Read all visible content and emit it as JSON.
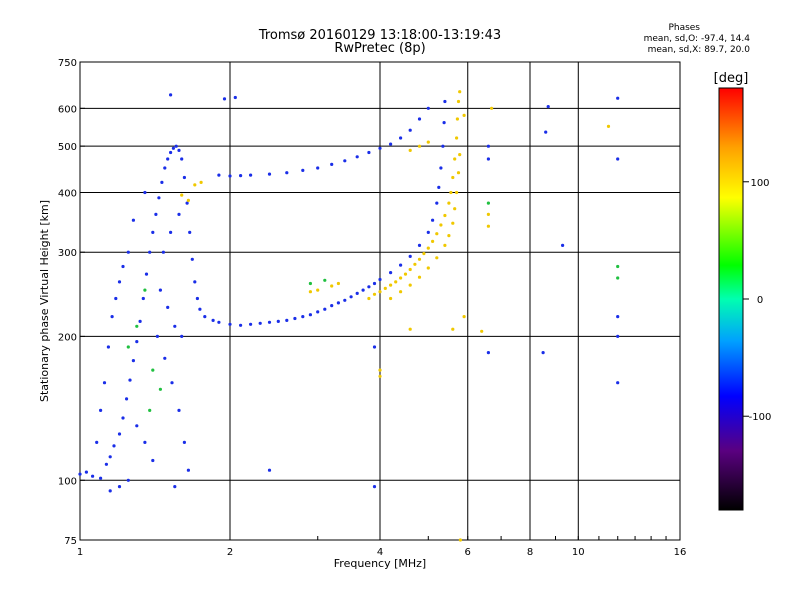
{
  "title": "Tromsø 20160129 13:18:00-13:19:43",
  "subtitle": "RwPretec (8p)",
  "stats": {
    "header": "Phases",
    "o_line": "mean, sd,O: -97.4, 14.4",
    "x_line": "mean, sd,X:  89.7, 20.0"
  },
  "chart_data": {
    "type": "scatter",
    "xlabel": "Frequency [MHz]",
    "ylabel": "Stationary phase Virtual Height [km]",
    "x_scale": "log",
    "y_scale": "log",
    "xlim": [
      1,
      16
    ],
    "ylim": [
      75,
      750
    ],
    "x_ticks": [
      1,
      2,
      4,
      6,
      8,
      10,
      16
    ],
    "y_ticks": [
      75,
      100,
      200,
      300,
      400,
      500,
      600,
      750
    ],
    "grid": true,
    "colorbar": {
      "label": "[deg]",
      "range": [
        -180,
        180
      ],
      "ticks": [
        100,
        0,
        -100
      ]
    },
    "series": [
      {
        "points": [
          [
            1.0,
            103
          ],
          [
            1.03,
            104
          ],
          [
            1.06,
            102
          ],
          [
            1.1,
            101
          ],
          [
            1.13,
            108
          ],
          [
            1.15,
            112
          ],
          [
            1.17,
            118
          ],
          [
            1.2,
            125
          ],
          [
            1.22,
            135
          ],
          [
            1.24,
            148
          ],
          [
            1.26,
            162
          ],
          [
            1.28,
            178
          ],
          [
            1.3,
            195
          ],
          [
            1.32,
            215
          ],
          [
            1.34,
            240
          ],
          [
            1.36,
            270
          ],
          [
            1.38,
            300
          ],
          [
            1.4,
            330
          ],
          [
            1.42,
            360
          ],
          [
            1.44,
            390
          ],
          [
            1.46,
            420
          ],
          [
            1.48,
            450
          ],
          [
            1.5,
            470
          ],
          [
            1.52,
            485
          ],
          [
            1.54,
            495
          ],
          [
            1.56,
            500
          ],
          [
            1.58,
            490
          ],
          [
            1.6,
            470
          ],
          [
            1.62,
            430
          ],
          [
            1.64,
            380
          ],
          [
            1.66,
            330
          ],
          [
            1.68,
            290
          ],
          [
            1.7,
            260
          ],
          [
            1.72,
            240
          ],
          [
            1.74,
            228
          ],
          [
            1.78,
            220
          ],
          [
            1.85,
            216
          ],
          [
            1.9,
            214
          ],
          [
            2.0,
            212
          ],
          [
            2.1,
            211
          ],
          [
            2.2,
            212
          ],
          [
            2.3,
            213
          ],
          [
            2.4,
            214
          ],
          [
            2.5,
            215
          ],
          [
            2.6,
            216
          ],
          [
            2.7,
            218
          ],
          [
            2.8,
            220
          ],
          [
            2.9,
            222
          ],
          [
            3.0,
            225
          ],
          [
            3.1,
            228
          ],
          [
            3.2,
            232
          ],
          [
            3.3,
            235
          ],
          [
            3.4,
            238
          ],
          [
            3.5,
            242
          ],
          [
            3.6,
            246
          ],
          [
            3.7,
            250
          ],
          [
            3.8,
            254
          ],
          [
            3.9,
            258
          ],
          [
            4.0,
            263
          ],
          [
            4.2,
            272
          ],
          [
            4.4,
            282
          ],
          [
            4.6,
            294
          ],
          [
            4.8,
            310
          ],
          [
            5.0,
            330
          ],
          [
            5.1,
            350
          ],
          [
            5.2,
            380
          ],
          [
            5.25,
            410
          ],
          [
            5.3,
            450
          ],
          [
            5.35,
            500
          ],
          [
            5.38,
            560
          ],
          [
            5.4,
            620
          ],
          [
            1.9,
            435
          ],
          [
            2.0,
            433
          ],
          [
            2.1,
            434
          ],
          [
            2.2,
            435
          ],
          [
            2.4,
            437
          ],
          [
            2.6,
            440
          ],
          [
            2.8,
            445
          ],
          [
            3.0,
            450
          ],
          [
            3.2,
            458
          ],
          [
            3.4,
            466
          ],
          [
            3.6,
            475
          ],
          [
            3.8,
            485
          ],
          [
            4.0,
            495
          ],
          [
            4.2,
            505
          ],
          [
            4.4,
            520
          ],
          [
            4.6,
            540
          ],
          [
            4.8,
            570
          ],
          [
            5.0,
            600
          ],
          [
            1.52,
            640
          ],
          [
            1.35,
            400
          ],
          [
            1.28,
            350
          ],
          [
            1.25,
            300
          ],
          [
            1.22,
            280
          ],
          [
            1.2,
            260
          ],
          [
            1.18,
            240
          ],
          [
            1.16,
            220
          ],
          [
            1.14,
            190
          ],
          [
            1.12,
            160
          ],
          [
            1.1,
            140
          ],
          [
            1.08,
            120
          ],
          [
            1.45,
            250
          ],
          [
            1.5,
            230
          ],
          [
            1.55,
            210
          ],
          [
            1.6,
            200
          ],
          [
            1.47,
            300
          ],
          [
            1.52,
            330
          ],
          [
            1.58,
            360
          ],
          [
            1.43,
            200
          ],
          [
            1.48,
            180
          ],
          [
            1.53,
            160
          ],
          [
            1.58,
            140
          ],
          [
            1.62,
            120
          ],
          [
            1.65,
            105
          ],
          [
            1.4,
            110
          ],
          [
            1.35,
            120
          ],
          [
            1.3,
            130
          ],
          [
            1.25,
            100
          ],
          [
            1.2,
            97
          ],
          [
            1.15,
            95
          ],
          [
            1.55,
            97
          ],
          [
            2.05,
            632
          ],
          [
            1.95,
            628
          ],
          [
            2.4,
            105
          ],
          [
            3.9,
            97
          ],
          [
            3.9,
            190
          ],
          [
            6.6,
            185
          ],
          [
            8.5,
            185
          ],
          [
            8.6,
            535
          ],
          [
            8.7,
            605
          ],
          [
            9.3,
            310
          ],
          [
            12.0,
            160
          ],
          [
            12.0,
            200
          ],
          [
            12.0,
            220
          ],
          [
            12.0,
            470
          ],
          [
            12.0,
            630
          ],
          [
            6.6,
            500
          ],
          [
            6.6,
            470
          ]
        ]
      },
      {
        "points": [
          [
            3.8,
            240
          ],
          [
            3.9,
            245
          ],
          [
            4.0,
            248
          ],
          [
            4.1,
            252
          ],
          [
            4.2,
            256
          ],
          [
            4.3,
            260
          ],
          [
            4.4,
            265
          ],
          [
            4.5,
            270
          ],
          [
            4.6,
            276
          ],
          [
            4.7,
            283
          ],
          [
            4.8,
            290
          ],
          [
            4.9,
            298
          ],
          [
            5.0,
            306
          ],
          [
            5.1,
            316
          ],
          [
            5.2,
            328
          ],
          [
            5.3,
            342
          ],
          [
            5.4,
            358
          ],
          [
            5.5,
            380
          ],
          [
            5.55,
            400
          ],
          [
            5.6,
            430
          ],
          [
            5.65,
            470
          ],
          [
            5.7,
            520
          ],
          [
            5.72,
            570
          ],
          [
            5.75,
            620
          ],
          [
            5.78,
            650
          ],
          [
            4.2,
            240
          ],
          [
            4.4,
            248
          ],
          [
            4.6,
            256
          ],
          [
            4.8,
            266
          ],
          [
            5.0,
            278
          ],
          [
            5.2,
            292
          ],
          [
            5.4,
            310
          ],
          [
            5.5,
            325
          ],
          [
            5.6,
            345
          ],
          [
            5.65,
            370
          ],
          [
            5.7,
            400
          ],
          [
            5.75,
            440
          ],
          [
            5.78,
            480
          ],
          [
            3.2,
            255
          ],
          [
            3.3,
            258
          ],
          [
            3.0,
            250
          ],
          [
            2.9,
            248
          ],
          [
            4.6,
            490
          ],
          [
            4.8,
            500
          ],
          [
            5.0,
            510
          ],
          [
            1.7,
            415
          ],
          [
            1.75,
            420
          ],
          [
            1.65,
            385
          ],
          [
            1.6,
            395
          ],
          [
            6.6,
            340
          ],
          [
            6.6,
            360
          ],
          [
            5.9,
            580
          ],
          [
            6.4,
            205
          ],
          [
            6.7,
            600
          ],
          [
            11.5,
            550
          ],
          [
            4.0,
            165
          ],
          [
            4.0,
            170
          ],
          [
            5.8,
            75
          ],
          [
            5.9,
            220
          ],
          [
            5.6,
            207
          ],
          [
            4.6,
            207
          ]
        ]
      },
      {
        "points": [
          [
            1.35,
            250
          ],
          [
            1.3,
            210
          ],
          [
            1.25,
            190
          ],
          [
            1.4,
            170
          ],
          [
            1.45,
            155
          ],
          [
            1.38,
            140
          ],
          [
            3.1,
            262
          ],
          [
            2.9,
            258
          ],
          [
            6.6,
            380
          ],
          [
            12.0,
            280
          ],
          [
            12.0,
            265
          ]
        ]
      }
    ]
  }
}
